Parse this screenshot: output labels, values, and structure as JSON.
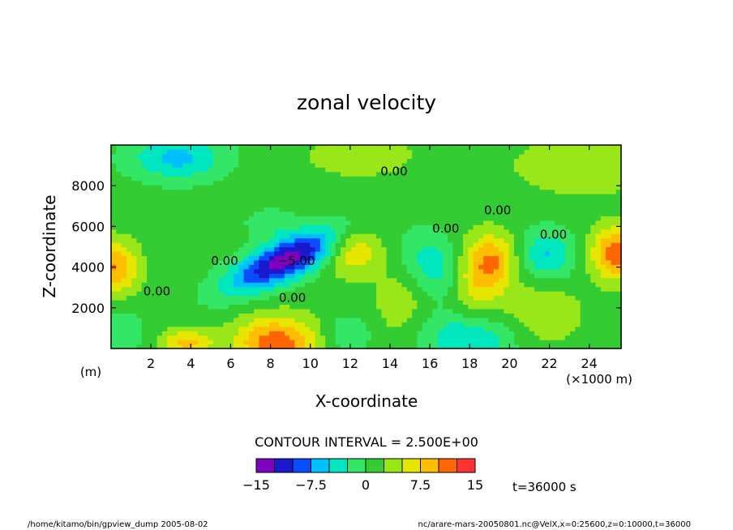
{
  "chart_data": {
    "type": "heatmap",
    "title": "zonal velocity",
    "xlabel": "X-coordinate",
    "ylabel": "Z-coordinate",
    "x_unit": "(×1000 m)",
    "y_unit": "(m)",
    "xlim": [
      0,
      25600
    ],
    "ylim": [
      0,
      10000
    ],
    "x_ticks": [
      {
        "value": 2000,
        "label": "2"
      },
      {
        "value": 4000,
        "label": "4"
      },
      {
        "value": 6000,
        "label": "6"
      },
      {
        "value": 8000,
        "label": "8"
      },
      {
        "value": 10000,
        "label": "10"
      },
      {
        "value": 12000,
        "label": "12"
      },
      {
        "value": 14000,
        "label": "14"
      },
      {
        "value": 16000,
        "label": "16"
      },
      {
        "value": 18000,
        "label": "18"
      },
      {
        "value": 20000,
        "label": "20"
      },
      {
        "value": 22000,
        "label": "22"
      },
      {
        "value": 24000,
        "label": "24"
      }
    ],
    "y_ticks": [
      {
        "value": 2000,
        "label": "2000"
      },
      {
        "value": 4000,
        "label": "4000"
      },
      {
        "value": 6000,
        "label": "6000"
      },
      {
        "value": 8000,
        "label": "8000"
      }
    ],
    "contour_interval_text": "CONTOUR INTERVAL = 2.500E+00",
    "time_text": "t=36000 s",
    "colorbar": {
      "levels": [
        -15,
        -12.5,
        -10,
        -7.5,
        -5,
        -2.5,
        0,
        2.5,
        5,
        7.5,
        10,
        12.5,
        15
      ],
      "colors": [
        "#7f00bf",
        "#1a1acc",
        "#0a4cff",
        "#00bfff",
        "#00e6bf",
        "#33e666",
        "#33cc33",
        "#99e619",
        "#e6e600",
        "#ffbf00",
        "#ff6600",
        "#ff3333"
      ],
      "labels": [
        {
          "value": -15,
          "text": "−15"
        },
        {
          "value": -7.5,
          "text": "−7.5"
        },
        {
          "value": 0,
          "text": "0"
        },
        {
          "value": 7.5,
          "text": "7.5"
        },
        {
          "value": 15,
          "text": "15"
        }
      ]
    },
    "contour_labels": [
      {
        "text": "0.00",
        "x": 14200,
        "y": 8500
      },
      {
        "text": "0.00",
        "x": 19400,
        "y": 6600
      },
      {
        "text": "0.00",
        "x": 16800,
        "y": 5700
      },
      {
        "text": "0.00",
        "x": 22200,
        "y": 5400
      },
      {
        "text": "0.00",
        "x": 5700,
        "y": 4100
      },
      {
        "text": "−5.00",
        "x": 9300,
        "y": 4100
      },
      {
        "text": "0.00",
        "x": 9100,
        "y": 2300
      },
      {
        "text": "0.00",
        "x": 2300,
        "y": 2600
      }
    ],
    "features": [
      {
        "x": 8800,
        "y": 4400,
        "amp": -15,
        "sx": 2200,
        "sz": 700,
        "rot": 0.42
      },
      {
        "x": 8300,
        "y": 300,
        "amp": 10.5,
        "sx": 1500,
        "sz": 900,
        "rot": 0
      },
      {
        "x": 12100,
        "y": 4900,
        "amp": 6.5,
        "sx": 1000,
        "sz": 900,
        "rot": 0
      },
      {
        "x": 16300,
        "y": 4100,
        "amp": -5.5,
        "sx": 1000,
        "sz": 1300,
        "rot": 0.9
      },
      {
        "x": 18300,
        "y": 3500,
        "amp": 6.5,
        "sx": 900,
        "sz": 1300,
        "rot": 0
      },
      {
        "x": 19300,
        "y": 4400,
        "amp": 6.5,
        "sx": 800,
        "sz": 900,
        "rot": 0
      },
      {
        "x": 21900,
        "y": 4600,
        "amp": -6.5,
        "sx": 1000,
        "sz": 900,
        "rot": 0
      },
      {
        "x": 25400,
        "y": 4700,
        "amp": 11,
        "sx": 900,
        "sz": 900,
        "rot": 0
      },
      {
        "x": 200,
        "y": 4000,
        "amp": 9,
        "sx": 800,
        "sz": 900,
        "rot": 0
      },
      {
        "x": 3300,
        "y": 9400,
        "amp": -7,
        "sx": 1700,
        "sz": 800,
        "rot": 0
      },
      {
        "x": 18000,
        "y": 500,
        "amp": -6.5,
        "sx": 1700,
        "sz": 900,
        "rot": 0
      },
      {
        "x": 3800,
        "y": 300,
        "amp": 7,
        "sx": 900,
        "sz": 500,
        "rot": 0
      },
      {
        "x": 23800,
        "y": 9000,
        "amp": 3.5,
        "sx": 2500,
        "sz": 1000,
        "rot": 0
      },
      {
        "x": 12500,
        "y": 9500,
        "amp": 3.5,
        "sx": 1800,
        "sz": 700,
        "rot": 0
      },
      {
        "x": 500,
        "y": 800,
        "amp": -3.5,
        "sx": 800,
        "sz": 800,
        "rot": 0
      },
      {
        "x": 11800,
        "y": 700,
        "amp": -3.5,
        "sx": 900,
        "sz": 700,
        "rot": 0
      },
      {
        "x": 21500,
        "y": 1800,
        "amp": 3.5,
        "sx": 1500,
        "sz": 1200,
        "rot": 0
      },
      {
        "x": 8000,
        "y": 6200,
        "amp": -3,
        "sx": 900,
        "sz": 500,
        "rot": 0
      },
      {
        "x": 14500,
        "y": 2200,
        "amp": 3,
        "sx": 900,
        "sz": 1200,
        "rot": 0
      }
    ]
  },
  "footer": {
    "left": "/home/kitamo/bin/gpview_dump  2005-08-02",
    "right": "nc/arare-mars-20050801.nc@VelX,x=0:25600,z=0:10000,t=36000"
  }
}
